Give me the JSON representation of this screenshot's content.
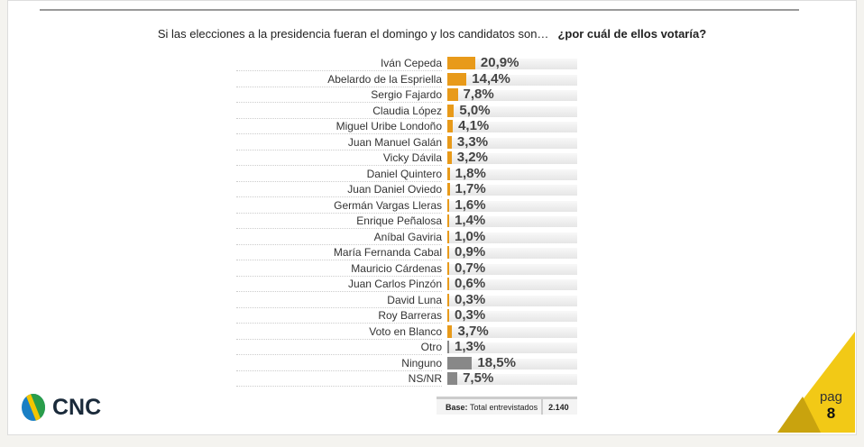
{
  "title": {
    "question": "Si las elecciones a la presidencia fueran el domingo y los candidatos son…",
    "emphasis": "¿por cuál de ellos votaría?"
  },
  "chart_data": {
    "type": "bar",
    "orientation": "horizontal",
    "xlim": [
      0,
      100
    ],
    "categories": [
      "Iván Cepeda",
      "Abelardo de la Espriella",
      "Sergio Fajardo",
      "Claudia López",
      "Miguel Uribe Londoño",
      "Juan Manuel Galán",
      "Vicky Dávila",
      "Daniel Quintero",
      "Juan Daniel Oviedo",
      "Germán Vargas Lleras",
      "Enrique Peñalosa",
      "Aníbal Gaviria",
      "María Fernanda Cabal",
      "Mauricio Cárdenas",
      "Juan Carlos Pinzón",
      "David Luna",
      "Roy Barreras",
      "Voto en Blanco",
      "Otro",
      "Ninguno",
      "NS/NR"
    ],
    "values": [
      20.9,
      14.4,
      7.8,
      5.0,
      4.1,
      3.3,
      3.2,
      1.8,
      1.7,
      1.6,
      1.4,
      1.0,
      0.9,
      0.7,
      0.6,
      0.3,
      0.3,
      3.7,
      1.3,
      18.5,
      7.5
    ],
    "labels": [
      "20,9%",
      "14,4%",
      "7,8%",
      "5,0%",
      "4,1%",
      "3,3%",
      "3,2%",
      "1,8%",
      "1,7%",
      "1,6%",
      "1,4%",
      "1,0%",
      "0,9%",
      "0,7%",
      "0,6%",
      "0,3%",
      "0,3%",
      "3,7%",
      "1,3%",
      "18,5%",
      "7,5%"
    ],
    "colors": [
      "#e89a1a",
      "#e89a1a",
      "#e89a1a",
      "#e89a1a",
      "#e89a1a",
      "#e89a1a",
      "#e89a1a",
      "#e89a1a",
      "#e89a1a",
      "#e89a1a",
      "#e89a1a",
      "#e89a1a",
      "#e89a1a",
      "#e89a1a",
      "#e89a1a",
      "#e89a1a",
      "#e89a1a",
      "#e89a1a",
      "#888888",
      "#888888",
      "#888888"
    ]
  },
  "base": {
    "label": "Base:",
    "text": "Total entrevistados",
    "value": "2.140"
  },
  "logo": {
    "text": "CNC"
  },
  "page": {
    "label": "pag",
    "number": "8"
  }
}
